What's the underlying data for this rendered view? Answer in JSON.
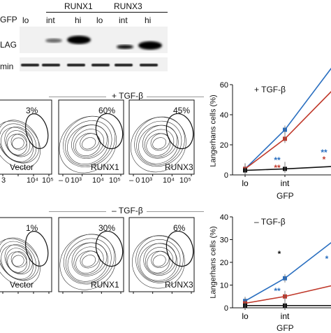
{
  "blot": {
    "headers": [
      "RUNX1",
      "RUNX3"
    ],
    "row_labels": [
      "GFP",
      "LAG",
      "min"
    ],
    "lane_labels": [
      "lo",
      "int",
      "hi",
      "lo",
      "int",
      "hi"
    ]
  },
  "flow": {
    "top_condition": "+ TGF-β",
    "bottom_condition": "– TGF-β",
    "top_panels": [
      {
        "label": "Vector",
        "percent": "3%"
      },
      {
        "label": "RUNX1",
        "percent": "60%"
      },
      {
        "label": "RUNX3",
        "percent": "45%"
      }
    ],
    "bottom_panels": [
      {
        "label": "Vector",
        "percent": "1%"
      },
      {
        "label": "RUNX1",
        "percent": "30%"
      },
      {
        "label": "RUNX3",
        "percent": "6%"
      }
    ],
    "x_ticks_first": [
      "3",
      "10⁴",
      "10⁵"
    ],
    "x_ticks_other": [
      "– 0",
      "10³",
      "10⁴",
      "10⁵"
    ]
  },
  "charts": {
    "ylabel": "Langerhans cells (%)",
    "xlabel": "GFP",
    "categories": [
      "lo",
      "int"
    ],
    "top": {
      "title": "+ TGF-β",
      "ylim": [
        0,
        60
      ],
      "yticks": [
        "0",
        "20",
        "40",
        "60"
      ],
      "significance": [
        "**",
        "**",
        "**",
        "*"
      ]
    },
    "bottom": {
      "title": "– TGF-β",
      "ylim": [
        0,
        40
      ],
      "yticks": [
        "0",
        "10",
        "20",
        "30",
        "40"
      ],
      "significance": [
        "*",
        "**",
        "*"
      ]
    }
  },
  "chart_data": [
    {
      "type": "line",
      "title": "+ TGF-β",
      "xlabel": "GFP",
      "ylabel": "Langerhans cells (%)",
      "categories": [
        "lo",
        "int"
      ],
      "ylim": [
        0,
        60
      ],
      "series": [
        {
          "color": "#2a6fc0",
          "values": [
            4,
            30
          ]
        },
        {
          "color": "#c0392b",
          "values": [
            4,
            24
          ]
        },
        {
          "color": "#111111",
          "values": [
            3,
            4
          ]
        }
      ]
    },
    {
      "type": "line",
      "title": "– TGF-β",
      "xlabel": "GFP",
      "ylabel": "Langerhans cells (%)",
      "categories": [
        "lo",
        "int"
      ],
      "ylim": [
        0,
        40
      ],
      "series": [
        {
          "color": "#2a6fc0",
          "values": [
            3,
            13
          ]
        },
        {
          "color": "#c0392b",
          "values": [
            2,
            5
          ]
        },
        {
          "color": "#111111",
          "values": [
            1,
            1
          ]
        }
      ]
    }
  ]
}
